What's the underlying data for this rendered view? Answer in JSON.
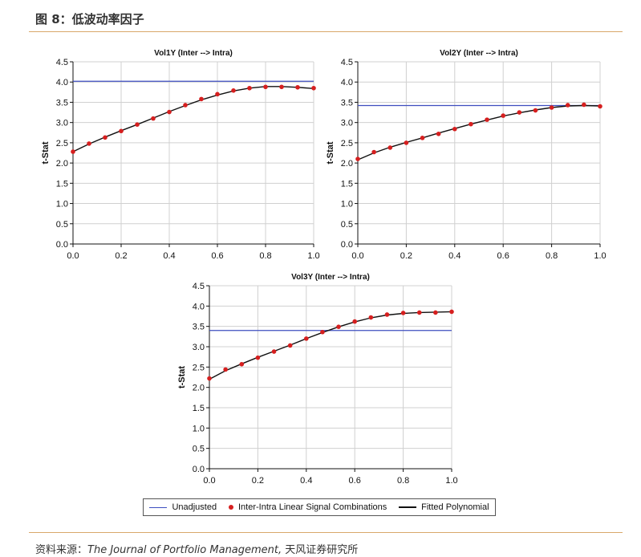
{
  "figure": {
    "title": "图 8：低波动率因子",
    "source_prefix": "资料来源：",
    "source_journal": "The Journal of Portfolio Management,",
    "source_suffix": " 天风证券研究所"
  },
  "colors": {
    "unadjusted": "#3d4dbf",
    "points": "#d61f1f",
    "fitted": "#111111",
    "grid": "#d0d0d0",
    "rule": "#d9a86a"
  },
  "legend": {
    "items": [
      {
        "label": "Unadjusted",
        "symbol": "line",
        "color": "#3d4dbf"
      },
      {
        "label": "Inter-Intra Linear Signal Combinations",
        "symbol": "dot",
        "color": "#d61f1f"
      },
      {
        "label": "Fitted Polynomial",
        "symbol": "line",
        "color": "#111111"
      }
    ]
  },
  "chart_data": [
    {
      "type": "line",
      "title": "Vol1Y (Inter --> Intra)",
      "xlabel": "",
      "ylabel": "t-Stat",
      "xlim": [
        0,
        1
      ],
      "ylim": [
        0,
        4.5
      ],
      "xticks": [
        "0.0",
        "0.2",
        "0.4",
        "0.6",
        "0.8",
        "1.0"
      ],
      "yticks": [
        "0.0",
        "0.5",
        "1.0",
        "1.5",
        "2.0",
        "2.5",
        "3.0",
        "3.5",
        "4.0",
        "4.5"
      ],
      "grid": true,
      "unadjusted": 4.02,
      "x": [
        0,
        0.0667,
        0.1333,
        0.2,
        0.2667,
        0.3333,
        0.4,
        0.4667,
        0.5333,
        0.6,
        0.6667,
        0.7333,
        0.8,
        0.8667,
        0.9333,
        1.0
      ],
      "points": [
        2.28,
        2.48,
        2.63,
        2.79,
        2.95,
        3.1,
        3.26,
        3.43,
        3.58,
        3.7,
        3.79,
        3.85,
        3.88,
        3.88,
        3.87,
        3.85
      ],
      "fitted": [
        2.28,
        2.47,
        2.64,
        2.8,
        2.95,
        3.11,
        3.27,
        3.42,
        3.56,
        3.68,
        3.78,
        3.85,
        3.89,
        3.89,
        3.87,
        3.84
      ]
    },
    {
      "type": "line",
      "title": "Vol2Y (Inter --> Intra)",
      "xlabel": "",
      "ylabel": "t-Stat",
      "xlim": [
        0,
        1
      ],
      "ylim": [
        0,
        4.5
      ],
      "xticks": [
        "0.0",
        "0.2",
        "0.4",
        "0.6",
        "0.8",
        "1.0"
      ],
      "yticks": [
        "0.0",
        "0.5",
        "1.0",
        "1.5",
        "2.0",
        "2.5",
        "3.0",
        "3.5",
        "4.0",
        "4.5"
      ],
      "grid": true,
      "unadjusted": 3.42,
      "x": [
        0,
        0.0667,
        0.1333,
        0.2,
        0.2667,
        0.3333,
        0.4,
        0.4667,
        0.5333,
        0.6,
        0.6667,
        0.7333,
        0.8,
        0.8667,
        0.9333,
        1.0
      ],
      "points": [
        2.1,
        2.27,
        2.38,
        2.5,
        2.62,
        2.72,
        2.84,
        2.96,
        3.07,
        3.17,
        3.25,
        3.3,
        3.37,
        3.43,
        3.44,
        3.4
      ],
      "fitted": [
        2.08,
        2.25,
        2.39,
        2.51,
        2.62,
        2.74,
        2.85,
        2.96,
        3.06,
        3.16,
        3.24,
        3.31,
        3.37,
        3.41,
        3.42,
        3.41
      ]
    },
    {
      "type": "line",
      "title": "Vol3Y (Inter --> Intra)",
      "xlabel": "",
      "ylabel": "t-Stat",
      "xlim": [
        0,
        1
      ],
      "ylim": [
        0,
        4.5
      ],
      "xticks": [
        "0.0",
        "0.2",
        "0.4",
        "0.6",
        "0.8",
        "1.0"
      ],
      "yticks": [
        "0.0",
        "0.5",
        "1.0",
        "1.5",
        "2.0",
        "2.5",
        "3.0",
        "3.5",
        "4.0",
        "4.5"
      ],
      "grid": true,
      "unadjusted": 3.4,
      "x": [
        0,
        0.0667,
        0.1333,
        0.2,
        0.2667,
        0.3333,
        0.4,
        0.4667,
        0.5333,
        0.6,
        0.6667,
        0.7333,
        0.8,
        0.8667,
        0.9333,
        1.0
      ],
      "points": [
        2.22,
        2.44,
        2.57,
        2.73,
        2.88,
        3.03,
        3.2,
        3.36,
        3.49,
        3.62,
        3.72,
        3.79,
        3.83,
        3.84,
        3.84,
        3.86
      ],
      "fitted": [
        2.2,
        2.41,
        2.58,
        2.74,
        2.89,
        3.04,
        3.2,
        3.35,
        3.49,
        3.61,
        3.71,
        3.78,
        3.82,
        3.84,
        3.85,
        3.86
      ]
    }
  ]
}
